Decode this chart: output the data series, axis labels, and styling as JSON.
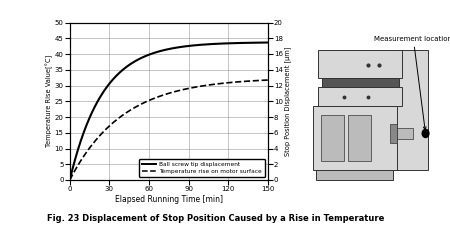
{
  "title": "Fig. 23 Displacement of Stop Position Caused by a Rise in Temperature",
  "xlabel": "Elapsed Running Time [min]",
  "ylabel_left": "Temperature Rise Value[°C]",
  "ylabel_right": "Stop Position Displacement [μm]",
  "xlim": [
    0,
    150
  ],
  "ylim_left": [
    0,
    50
  ],
  "ylim_right": [
    0,
    20
  ],
  "xticks": [
    0,
    30,
    60,
    90,
    120,
    150
  ],
  "yticks_left": [
    0,
    5,
    10,
    15,
    20,
    25,
    30,
    35,
    40,
    45,
    50
  ],
  "yticks_right": [
    0,
    2,
    4,
    6,
    8,
    10,
    12,
    14,
    16,
    18,
    20
  ],
  "line1_label": "Ball screw tip displacement",
  "line2_label": "Temperature rise on motor surface",
  "background": "#ffffff",
  "line_color": "#000000",
  "measurement_label": "Measurement location",
  "ball_screw_asymptote": 17.5,
  "ball_screw_tau": 25,
  "temp_asymptote": 13.0,
  "temp_tau": 40
}
